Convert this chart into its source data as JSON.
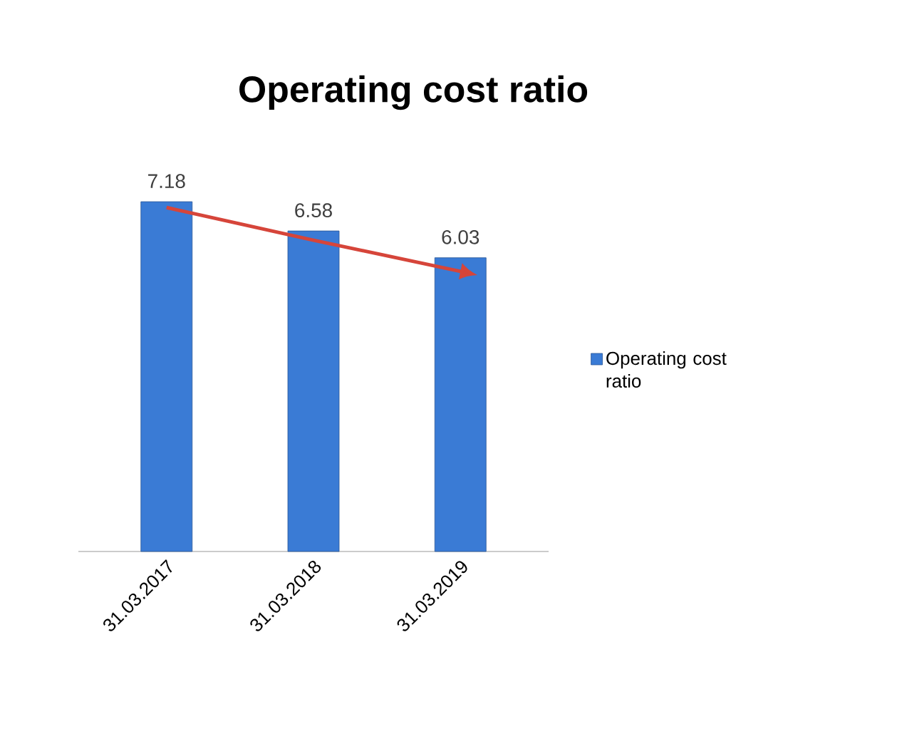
{
  "chart_data": {
    "type": "bar",
    "title": "Operating cost ratio",
    "categories": [
      "31.03.2017",
      "31.03.2018",
      "31.03.2019"
    ],
    "series": [
      {
        "name": "Operating cost ratio",
        "color": "#3a7bd5",
        "values": [
          7.18,
          6.58,
          6.03
        ],
        "value_labels": [
          "7.18",
          "6.58",
          "6.03"
        ]
      },
      {
        "type": "line",
        "color": "#d6453a",
        "x": [
          "31.03.2017",
          "31.03.2018",
          "31.03.2019"
        ],
        "values": [
          7.06,
          6.39,
          5.75
        ]
      }
    ],
    "tick_labels": "x",
    "legend": "right"
  }
}
